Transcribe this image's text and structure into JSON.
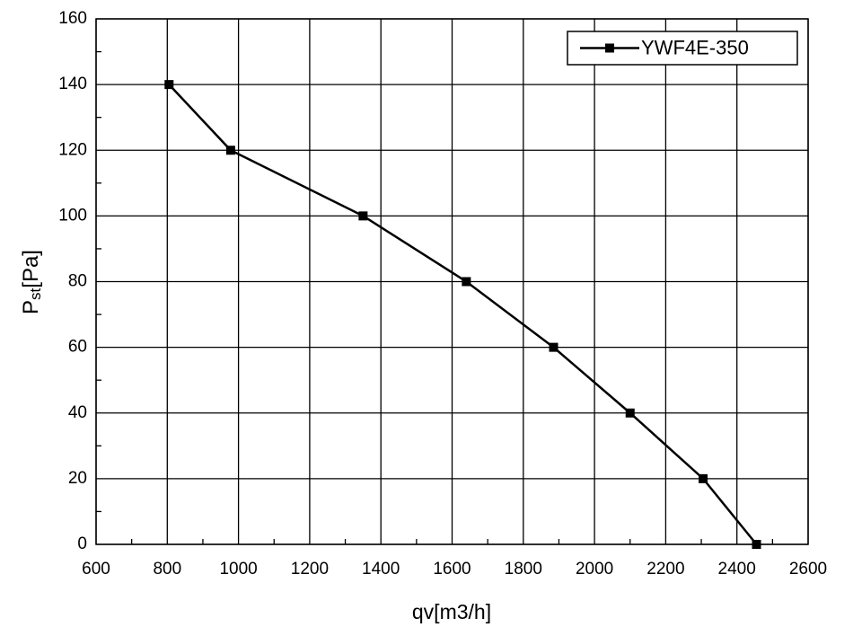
{
  "chart_data": {
    "type": "line",
    "x_label": "qv[m3/h]",
    "y_label": {
      "base": "P",
      "sub": "st",
      "unit": "[Pa]"
    },
    "x": [
      805,
      978,
      1350,
      1640,
      1885,
      2100,
      2305,
      2455
    ],
    "series": [
      {
        "name": "YWF4E-350",
        "color": "#000000",
        "values": [
          140,
          120,
          100,
          80,
          60,
          40,
          20,
          0
        ]
      }
    ],
    "xlim": [
      600,
      2600
    ],
    "xticks": [
      600,
      800,
      1000,
      1200,
      1400,
      1600,
      1800,
      2000,
      2200,
      2400,
      2600
    ],
    "ylim": [
      0,
      160
    ],
    "yticks": [
      0,
      20,
      40,
      60,
      80,
      100,
      120,
      140,
      160
    ],
    "grid": true,
    "legend": "upper right",
    "marker": "square"
  }
}
